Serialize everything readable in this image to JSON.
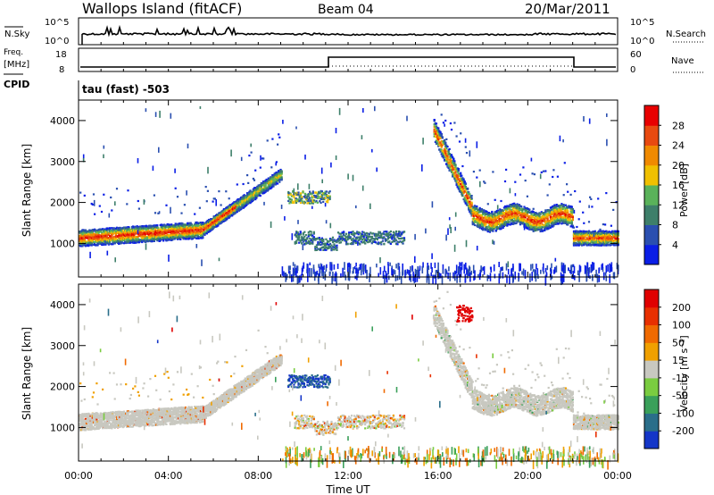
{
  "header": {
    "station": "Wallops Island (fitACF)",
    "beam": "Beam 04",
    "date": "20/Mar/2011"
  },
  "nsky_panel": {
    "left_label": "N.Sky",
    "left_ticks": [
      "10^5",
      "10^0"
    ],
    "right_label": "N.Search",
    "right_ticks": [
      "10^5",
      "10^0"
    ]
  },
  "freq_panel": {
    "left_label_line1": "Freq.",
    "left_label_line2": "[MHz]",
    "left_ticks": [
      "18",
      "8"
    ],
    "right_label": "Nave",
    "right_ticks": [
      "60",
      "0"
    ]
  },
  "cpid_panel": {
    "label": "CPID",
    "text": "tau (fast) -503"
  },
  "colors": {
    "frame": "#000000",
    "velocity_gray": "#c8c8c0"
  },
  "chart_data": [
    {
      "type": "heatmap",
      "name": "power",
      "ylabel": "Slant Range [km]",
      "yticks": [
        1000,
        2000,
        3000,
        4000
      ],
      "ylim": [
        180,
        4500
      ],
      "xlim_hours": [
        0,
        24
      ],
      "xticks": [
        "00:00",
        "04:00",
        "08:00",
        "12:00",
        "16:00",
        "20:00",
        "00:00"
      ],
      "colorbar": {
        "label": "Power [dB]",
        "ticks": [
          "4",
          "8",
          "12",
          "16",
          "20",
          "24",
          "28"
        ],
        "colors": [
          "#0a1ee6",
          "#2a4fb0",
          "#3e7f6a",
          "#5ab25a",
          "#f0c000",
          "#f08a00",
          "#e84a10",
          "#e80000"
        ]
      }
    },
    {
      "type": "heatmap",
      "name": "velocity",
      "ylabel": "Slant Range [km]",
      "yticks": [
        1000,
        2000,
        3000,
        4000
      ],
      "ylim": [
        180,
        4500
      ],
      "xlim_hours": [
        0,
        24
      ],
      "xticks": [
        "00:00",
        "04:00",
        "08:00",
        "12:00",
        "16:00",
        "20:00",
        "00:00"
      ],
      "xlabel": "Time UT",
      "colorbar": {
        "label": "Velocity [m s⁻¹]",
        "ticks": [
          "200",
          "100",
          "50",
          "15",
          "-15",
          "-50",
          "-100",
          "-200"
        ],
        "colors": [
          "#1436c8",
          "#2a6e8a",
          "#3aa05a",
          "#7acc40",
          "#c8c8c0",
          "#f0a000",
          "#f06a00",
          "#e83000",
          "#e00000"
        ]
      }
    }
  ]
}
